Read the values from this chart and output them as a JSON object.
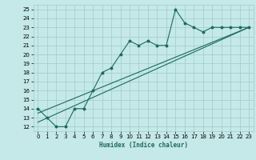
{
  "title": "",
  "xlabel": "Humidex (Indice chaleur)",
  "ylabel": "",
  "bg_color": "#c5e8e8",
  "grid_color": "#a0cccc",
  "line_color": "#1a6b5a",
  "xlim": [
    -0.5,
    23.5
  ],
  "ylim": [
    11.5,
    25.5
  ],
  "yticks": [
    12,
    13,
    14,
    15,
    16,
    17,
    18,
    19,
    20,
    21,
    22,
    23,
    24,
    25
  ],
  "xticks": [
    0,
    1,
    2,
    3,
    4,
    5,
    6,
    7,
    8,
    9,
    10,
    11,
    12,
    13,
    14,
    15,
    16,
    17,
    18,
    19,
    20,
    21,
    22,
    23
  ],
  "line1_x": [
    0,
    1,
    2,
    3,
    4,
    5,
    6,
    7,
    8,
    9,
    10,
    11,
    12,
    13,
    14,
    15,
    16,
    17,
    18,
    19,
    20,
    21,
    22,
    23
  ],
  "line1_y": [
    14.0,
    13.0,
    12.0,
    12.0,
    14.0,
    14.0,
    16.0,
    18.0,
    18.5,
    20.0,
    21.5,
    21.0,
    21.5,
    21.0,
    21.0,
    25.0,
    23.5,
    23.0,
    22.5,
    23.0,
    23.0,
    23.0,
    23.0,
    23.0
  ],
  "line2_x": [
    0,
    23
  ],
  "line2_y": [
    12.5,
    23.0
  ],
  "line3_x": [
    0,
    23
  ],
  "line3_y": [
    13.5,
    23.0
  ],
  "label_fontsize": 5.5,
  "tick_fontsize": 5
}
